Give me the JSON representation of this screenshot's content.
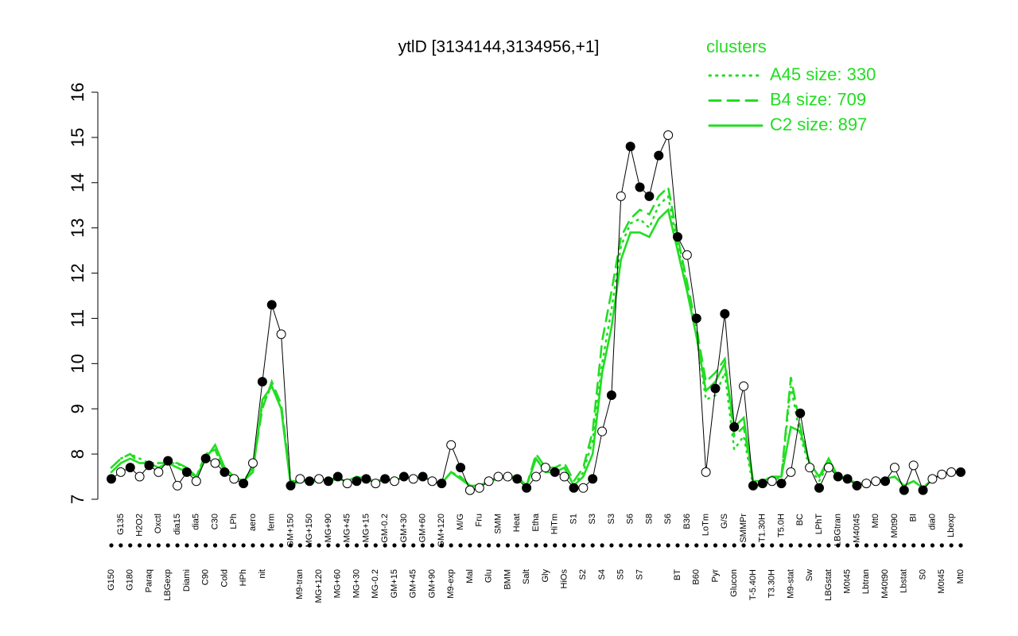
{
  "chart_data": {
    "type": "line",
    "title": "ytlD [3134144,3134956,+1]",
    "categories": [
      "G150",
      "G135",
      "G180",
      "H2O2",
      "Paraq",
      "Oxctl",
      "LBGexp",
      "dia15",
      "Diami",
      "dia5",
      "C90",
      "C30",
      "Cold",
      "LPh",
      "HPh",
      "aero",
      "nit",
      "ferm",
      null,
      "GM+150",
      "M9-tran",
      "MG+150",
      "MG+120",
      "MG+90",
      "MG+60",
      "MG+45",
      "MG+30",
      "MG+15",
      "MG-0.2",
      "GM-0.2",
      "GM+15",
      "GM+30",
      "GM+45",
      "GM+60",
      "GM+90",
      "GM+120",
      "M9-exp",
      "M/G",
      "Mal",
      "Fru",
      "Glu",
      "SMM",
      "BMM",
      "Heat",
      "Salt",
      "Etha",
      "Gly",
      "HiTm",
      "HiOs",
      "S1",
      "S2",
      "S3",
      "S4",
      "S3",
      "S5",
      "S6",
      "S7",
      "S8",
      null,
      "S6",
      "BT",
      "B36",
      "B60",
      "LoTm",
      "Pyr",
      "G/S",
      "Glucon",
      "SMMPr",
      "T-5.40H",
      "T1.30H",
      "T3.30H",
      "T5.0H",
      "M9-stat",
      "BC",
      "Sw",
      "LPhT",
      "LBGstat",
      "LBGtran",
      "M0t45",
      "M40t45",
      "Lbtran",
      "Mt0",
      "M40t90",
      "M0t90",
      "Lbstat",
      "BI",
      "S0",
      "dia0",
      "M0t45",
      "Lbexp",
      "Mt0"
    ],
    "points": {
      "values": [
        7.45,
        7.6,
        7.7,
        7.5,
        7.75,
        7.6,
        7.85,
        7.3,
        7.6,
        7.4,
        7.9,
        7.8,
        7.6,
        7.45,
        7.35,
        7.8,
        9.6,
        11.3,
        10.65,
        7.3,
        7.45,
        7.4,
        7.45,
        7.4,
        7.5,
        7.35,
        7.4,
        7.45,
        7.35,
        7.45,
        7.4,
        7.5,
        7.45,
        7.5,
        7.4,
        7.35,
        8.2,
        7.7,
        7.2,
        7.25,
        7.4,
        7.5,
        7.5,
        7.45,
        7.25,
        7.5,
        7.7,
        7.6,
        7.5,
        7.25,
        7.25,
        7.45,
        8.5,
        9.3,
        13.7,
        14.8,
        13.9,
        13.7,
        14.6,
        15.05,
        12.8,
        12.4,
        11.0,
        7.6,
        9.45,
        11.1,
        8.6,
        9.5,
        7.3,
        7.35,
        7.4,
        7.35,
        7.6,
        8.9,
        7.7,
        7.25,
        7.7,
        7.5,
        7.45,
        7.3,
        7.35,
        7.4,
        7.4,
        7.7,
        7.2,
        7.75,
        7.2,
        7.45,
        7.55,
        7.6,
        7.6
      ],
      "fills": [
        "#000",
        "#fff",
        "#000",
        "#fff",
        "#000",
        "#fff",
        "#000",
        "#fff",
        "#000",
        "#fff",
        "#000",
        "#fff",
        "#000",
        "#fff",
        "#000",
        "#fff",
        "#000",
        "#000",
        "#fff",
        "#000",
        "#fff",
        "#000",
        "#fff",
        "#000",
        "#000",
        "#fff",
        "#000",
        "#000",
        "#fff",
        "#000",
        "#fff",
        "#000",
        "#fff",
        "#000",
        "#fff",
        "#000",
        "#fff",
        "#000",
        "#fff",
        "#fff",
        "#fff",
        "#fff",
        "#fff",
        "#000",
        "#000",
        "#fff",
        "#fff",
        "#000",
        "#fff",
        "#000",
        "#fff",
        "#000",
        "#fff",
        "#000",
        "#fff",
        "#000",
        "#000",
        "#000",
        "#000",
        "#fff",
        "#000",
        "#fff",
        "#000",
        "#fff",
        "#000",
        "#000",
        "#000",
        "#fff",
        "#000",
        "#000",
        "#fff",
        "#000",
        "#fff",
        "#000",
        "#fff",
        "#000",
        "#fff",
        "#000",
        "#000",
        "#000",
        "#fff",
        "#fff",
        "#000",
        "#fff",
        "#000",
        "#fff",
        "#000",
        "#fff",
        "#fff",
        "#fff",
        "#000"
      ]
    },
    "legend_title": "clusters",
    "series": [
      {
        "name": "A45 size: 330",
        "color": "#22dd22",
        "style": "dotted",
        "values": [
          7.7,
          7.9,
          8.0,
          7.9,
          7.8,
          7.8,
          7.8,
          7.8,
          7.6,
          7.5,
          8.0,
          8.1,
          7.6,
          7.5,
          7.4,
          7.7,
          9.1,
          9.5,
          9.0,
          7.3,
          7.4,
          7.4,
          7.4,
          7.45,
          7.45,
          7.4,
          7.5,
          7.45,
          7.4,
          7.45,
          7.4,
          7.5,
          7.45,
          7.5,
          7.4,
          7.35,
          7.6,
          7.5,
          7.3,
          7.3,
          7.4,
          7.45,
          7.5,
          7.5,
          7.3,
          7.9,
          7.6,
          7.6,
          7.7,
          7.3,
          7.6,
          8.3,
          10.0,
          11.2,
          12.6,
          13.1,
          13.2,
          13.0,
          13.5,
          13.7,
          12.6,
          11.7,
          10.6,
          9.2,
          9.3,
          9.8,
          8.1,
          8.4,
          7.3,
          7.3,
          7.4,
          7.5,
          9.5,
          8.4,
          7.7,
          7.4,
          7.8,
          7.5,
          7.45,
          7.35,
          7.35,
          7.4,
          7.45,
          7.5,
          7.3,
          7.4,
          7.25,
          7.45,
          7.55,
          7.6,
          7.6
        ]
      },
      {
        "name": "B4 size: 709",
        "color": "#22dd22",
        "style": "dashed",
        "values": [
          7.7,
          7.9,
          8.0,
          7.8,
          7.8,
          7.8,
          7.8,
          7.8,
          7.7,
          7.5,
          8.0,
          8.1,
          7.6,
          7.5,
          7.4,
          7.7,
          9.0,
          9.6,
          9.1,
          7.4,
          7.4,
          7.4,
          7.4,
          7.4,
          7.45,
          7.4,
          7.5,
          7.45,
          7.4,
          7.45,
          7.4,
          7.5,
          7.45,
          7.5,
          7.4,
          7.35,
          7.6,
          7.5,
          7.3,
          7.3,
          7.4,
          7.45,
          7.5,
          7.5,
          7.3,
          8.0,
          7.7,
          7.7,
          7.8,
          7.4,
          7.7,
          8.5,
          10.5,
          11.6,
          12.8,
          13.2,
          13.4,
          13.3,
          13.7,
          13.9,
          12.8,
          11.8,
          10.8,
          9.6,
          9.8,
          10.1,
          8.4,
          8.6,
          7.4,
          7.4,
          7.5,
          7.5,
          9.7,
          8.6,
          7.8,
          7.5,
          7.8,
          7.5,
          7.45,
          7.35,
          7.35,
          7.4,
          7.45,
          7.5,
          7.3,
          7.4,
          7.25,
          7.45,
          7.55,
          7.6,
          7.6
        ]
      },
      {
        "name": "C2 size: 897",
        "color": "#22dd22",
        "style": "solid",
        "values": [
          7.6,
          7.8,
          7.9,
          7.8,
          7.8,
          7.7,
          7.8,
          7.7,
          7.6,
          7.5,
          7.9,
          8.2,
          7.7,
          7.5,
          7.4,
          7.6,
          9.2,
          9.5,
          9.0,
          7.3,
          7.4,
          7.4,
          7.4,
          7.45,
          7.45,
          7.4,
          7.5,
          7.45,
          7.4,
          7.45,
          7.4,
          7.5,
          7.45,
          7.5,
          7.4,
          7.35,
          7.6,
          7.45,
          7.3,
          7.3,
          7.4,
          7.45,
          7.5,
          7.5,
          7.3,
          7.9,
          7.6,
          7.6,
          7.7,
          7.3,
          7.5,
          8.0,
          9.8,
          10.8,
          12.3,
          12.9,
          12.9,
          12.8,
          13.2,
          13.4,
          12.5,
          11.6,
          10.6,
          9.4,
          9.6,
          10.0,
          8.6,
          8.8,
          7.4,
          7.4,
          7.5,
          7.5,
          8.6,
          8.5,
          7.8,
          7.5,
          7.9,
          7.5,
          7.45,
          7.35,
          7.35,
          7.4,
          7.45,
          7.5,
          7.3,
          7.4,
          7.25,
          7.45,
          7.55,
          7.6,
          7.6
        ]
      }
    ],
    "ylim": [
      7,
      16
    ],
    "yticks": [
      7,
      8,
      9,
      10,
      11,
      12,
      13,
      14,
      15,
      16
    ]
  }
}
